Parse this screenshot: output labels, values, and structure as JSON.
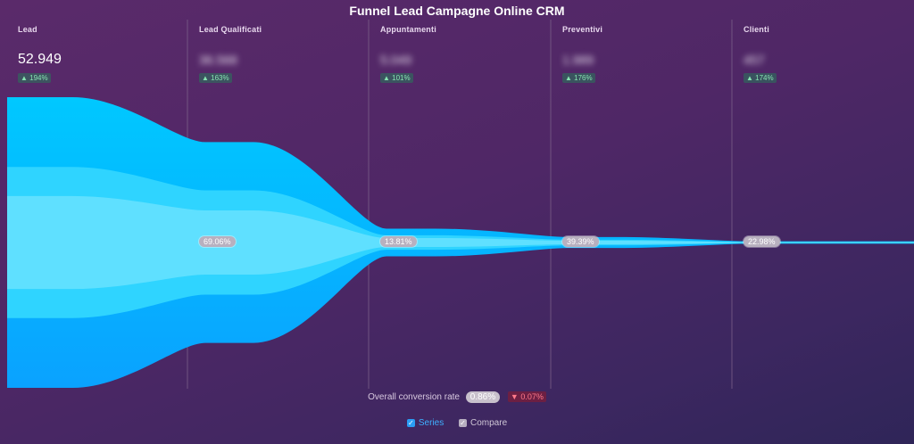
{
  "chart_data": {
    "type": "funnel",
    "title": "Funnel Lead Campagne Online CRM",
    "stages": [
      {
        "name": "Lead",
        "value": "52.949",
        "change": "▲ 194%",
        "rate": "",
        "hidden": false
      },
      {
        "name": "Lead Qualificati",
        "value": "36.568",
        "change": "▲ 163%",
        "rate": "69.06%",
        "hidden": true
      },
      {
        "name": "Appuntamenti",
        "value": "5.049",
        "change": "▲ 101%",
        "rate": "13.81%",
        "hidden": true
      },
      {
        "name": "Preventivi",
        "value": "1.989",
        "change": "▲ 176%",
        "rate": "39.39%",
        "hidden": true
      },
      {
        "name": "Clienti",
        "value": "457",
        "change": "▲ 174%",
        "rate": "22.98%",
        "hidden": true
      }
    ],
    "relative_sizes": [
      1.0,
      0.6906,
      0.0954,
      0.0376,
      0.0086
    ],
    "overall_label": "Overall conversion rate",
    "overall_value": "0.86%",
    "overall_change": "▼ 0.07%",
    "legend": [
      {
        "label": "Series",
        "checked": true
      },
      {
        "label": "Compare",
        "checked": true
      }
    ],
    "colors": {
      "outer": "#00c8ff",
      "outer_bottom": "#0aa2ff",
      "middle": "#2fd4ff",
      "inner": "#5fe0ff",
      "separator": "#7a5f88"
    }
  }
}
